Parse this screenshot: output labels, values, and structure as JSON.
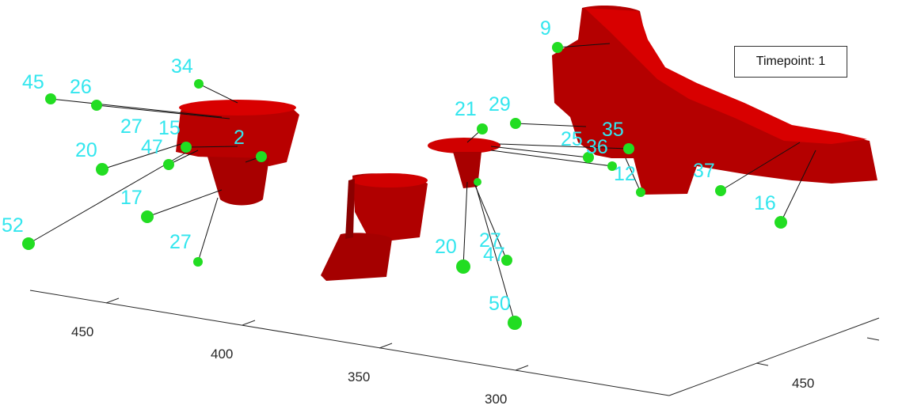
{
  "timepoint": {
    "label": "Timepoint:",
    "value": "1"
  },
  "colors": {
    "surface": "#c40000",
    "surface_dark": "#7a0000",
    "marker": "#22dd22",
    "label": "#33e6ee",
    "axis": "#262626",
    "line": "#111111"
  },
  "axes": {
    "left_ticks": [
      "450",
      "400",
      "350",
      "300"
    ],
    "right_ticks": [
      "450"
    ]
  },
  "markers": [
    {
      "label": "45"
    },
    {
      "label": "26"
    },
    {
      "label": "34"
    },
    {
      "label": "27"
    },
    {
      "label": "15"
    },
    {
      "label": "47"
    },
    {
      "label": "20"
    },
    {
      "label": "2"
    },
    {
      "label": "17"
    },
    {
      "label": "52"
    },
    {
      "label": "27"
    },
    {
      "label": "21"
    },
    {
      "label": "29"
    },
    {
      "label": "20"
    },
    {
      "label": "27"
    },
    {
      "label": "47"
    },
    {
      "label": "50"
    },
    {
      "label": "9"
    },
    {
      "label": "25"
    },
    {
      "label": "36"
    },
    {
      "label": "35"
    },
    {
      "label": "12"
    },
    {
      "label": "37"
    },
    {
      "label": "16"
    }
  ]
}
